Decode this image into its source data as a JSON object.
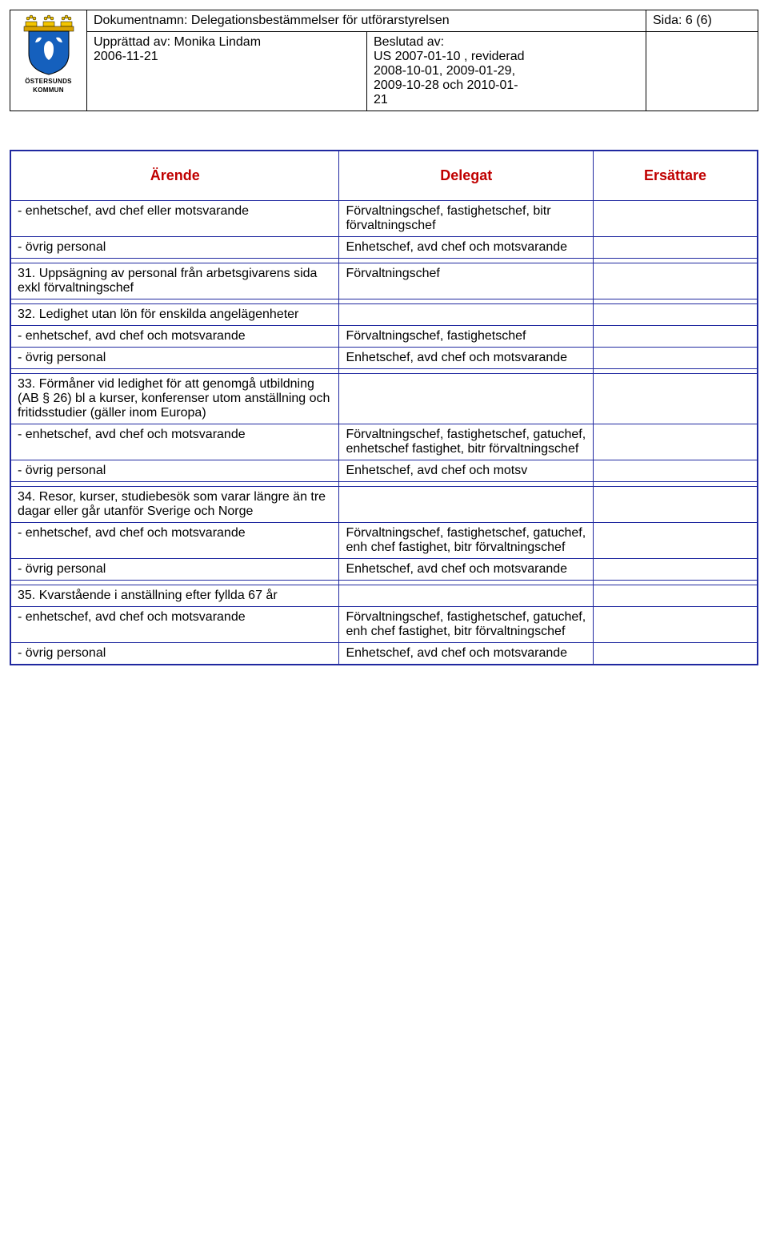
{
  "header": {
    "docname_label": "Dokumentnamn:",
    "docname_value": "Delegationsbestämmelser för utförarstyrelsen",
    "page_label": "Sida:",
    "page_value": "6 (6)",
    "upprattad_label": "Upprättad av:",
    "upprattad_value": "Monika Lindam",
    "upprattad_date": "2006-11-21",
    "beslutad_label": "Beslutad av:",
    "beslutad_lines": [
      "US 2007-01-10 , reviderad",
      "2008-10-01, 2009-01-29,",
      "2009-10-28 och 2010-01-",
      "21"
    ],
    "logo_text": "ÖSTERSUNDS",
    "logo_text2": "KOMMUN"
  },
  "table": {
    "columns": [
      "Ärende",
      "Delegat",
      "Ersättare"
    ],
    "col_widths_pct": [
      44,
      34,
      22
    ],
    "border_color": "#2029a0",
    "header_text_color": "#c00000",
    "header_fontsize_pt": 14,
    "body_fontsize_pt": 12,
    "rows": [
      {
        "a": "- enhetschef, avd chef eller motsvarande",
        "b": "Förvaltningschef, fastighetschef, bitr förvaltningschef",
        "c": ""
      },
      {
        "a": "- övrig personal",
        "b": "Enhetschef, avd chef och motsvarande",
        "c": ""
      },
      {
        "spacer": true
      },
      {
        "a": "31. Uppsägning av personal från arbetsgivarens sida exkl förvaltningschef",
        "b": "Förvaltningschef",
        "c": ""
      },
      {
        "spacer": true
      },
      {
        "a": "32. Ledighet utan lön för enskilda angelägenheter",
        "b": "",
        "c": ""
      },
      {
        "a": "- enhetschef,  avd  chef och motsvarande",
        "b": "Förvaltningschef, fastighetschef",
        "c": ""
      },
      {
        "a": "- övrig personal",
        "b": "Enhetschef, avd chef och motsvarande",
        "c": ""
      },
      {
        "spacer": true
      },
      {
        "a": "33. Förmåner vid ledighet för att genomgå utbildning (AB § 26) bl a kurser, konferenser utom anställning och fritidsstudier (gäller inom Europa)",
        "b": "",
        "c": ""
      },
      {
        "a": "- enhetschef, avd chef och motsvarande",
        "b": "Förvaltningschef, fastighetschef, gatuchef, enhetschef fastighet, bitr förvaltningschef",
        "c": ""
      },
      {
        "a": "- övrig personal",
        "b": "Enhetschef, avd chef och motsv",
        "c": ""
      },
      {
        "spacer": true
      },
      {
        "a": "34. Resor, kurser, studiebesök som varar längre än tre dagar eller går utanför Sverige och Norge",
        "b": "",
        "c": ""
      },
      {
        "a": "- enhetschef, avd chef och motsvarande",
        "b": "Förvaltningschef, fastighetschef, gatuchef, enh chef fastighet, bitr förvaltningschef",
        "c": ""
      },
      {
        "a": "- övrig personal",
        "b": "Enhetschef, avd chef och motsvarande",
        "c": ""
      },
      {
        "spacer": true
      },
      {
        "a": "35. Kvarstående i anställning efter fyllda 67 år",
        "b": "",
        "c": ""
      },
      {
        "a": "- enhetschef,  avd chef och motsvarande",
        "b": "Förvaltningschef, fastighetschef, gatuchef, enh chef fastighet, bitr förvaltningschef",
        "c": ""
      },
      {
        "a": "- övrig personal",
        "b": "Enhetschef, avd chef och motsvarande",
        "c": ""
      }
    ]
  }
}
